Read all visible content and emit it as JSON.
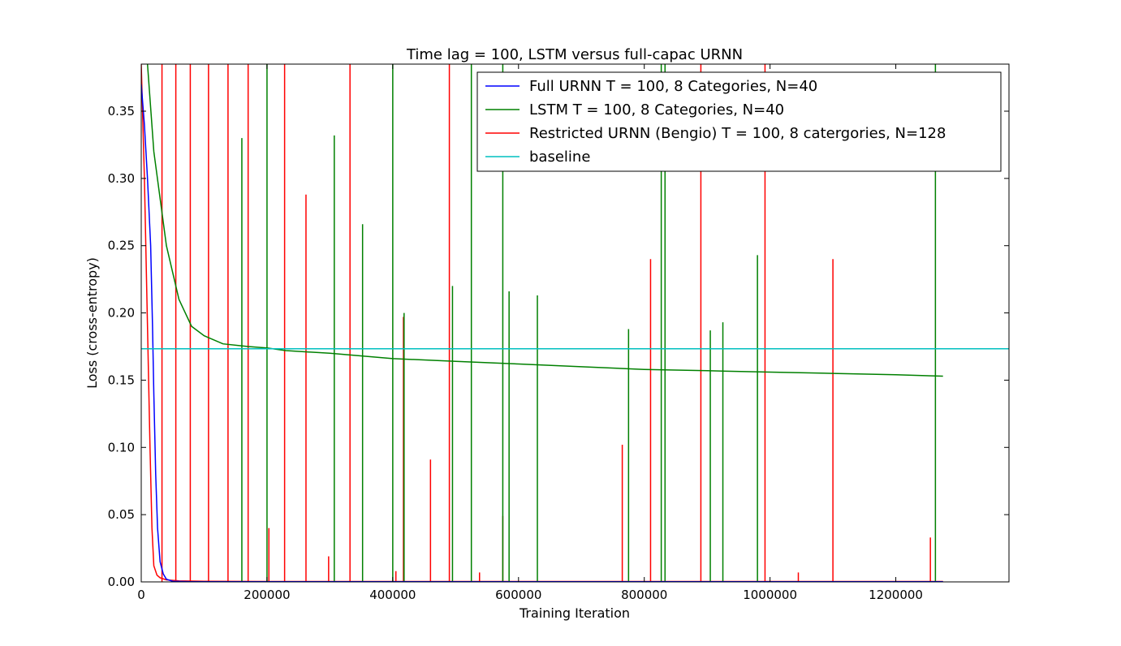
{
  "chart_data": {
    "type": "line",
    "title": "Time lag = 100, LSTM versus full-capac URNN",
    "xlabel": "Training Iteration",
    "ylabel": "Loss (cross-entropy)",
    "xlim": [
      0,
      1380000
    ],
    "ylim": [
      0,
      0.385
    ],
    "xticks": [
      0,
      200000,
      400000,
      600000,
      800000,
      1000000,
      1200000
    ],
    "xtick_labels": [
      "0",
      "200000",
      "400000",
      "600000",
      "800000",
      "1000000",
      "1200000"
    ],
    "yticks": [
      0,
      0.05,
      0.1,
      0.15,
      0.2,
      0.25,
      0.3,
      0.35
    ],
    "ytick_labels": [
      "0.00",
      "0.05",
      "0.10",
      "0.15",
      "0.20",
      "0.25",
      "0.30",
      "0.35"
    ],
    "grid": false,
    "legend_position": "top-right",
    "series": [
      {
        "name": "Full URNN T = 100, 8 Categories, N=40",
        "color": "#0000ff",
        "x": [
          0,
          5000,
          10000,
          15000,
          18000,
          20000,
          23000,
          26000,
          30000,
          35000,
          40000,
          50000,
          80000,
          200000,
          400000,
          800000,
          1275000
        ],
        "y": [
          0.37,
          0.34,
          0.3,
          0.25,
          0.19,
          0.14,
          0.08,
          0.04,
          0.015,
          0.006,
          0.002,
          0.0005,
          0.0002,
          0.0001,
          0.0001,
          0.0001,
          0.0001
        ]
      },
      {
        "name": "LSTM T = 100, 8 Categories, N=40",
        "color": "#008000",
        "x": [
          10000,
          20000,
          40000,
          60000,
          80000,
          100000,
          130000,
          170000,
          200000,
          230000,
          300000,
          400000,
          500000,
          600000,
          700000,
          800000,
          900000,
          1000000,
          1100000,
          1200000,
          1275000
        ],
        "y": [
          0.385,
          0.32,
          0.25,
          0.21,
          0.19,
          0.183,
          0.177,
          0.175,
          0.174,
          0.172,
          0.17,
          0.166,
          0.164,
          0.162,
          0.16,
          0.158,
          0.157,
          0.156,
          0.155,
          0.154,
          0.153
        ],
        "spikes": [
          {
            "x": 160000,
            "y": 0.33
          },
          {
            "x": 200000,
            "y": 0.385
          },
          {
            "x": 307000,
            "y": 0.332
          },
          {
            "x": 352000,
            "y": 0.266
          },
          {
            "x": 400000,
            "y": 0.385
          },
          {
            "x": 418000,
            "y": 0.2
          },
          {
            "x": 495000,
            "y": 0.22
          },
          {
            "x": 525000,
            "y": 0.385
          },
          {
            "x": 575000,
            "y": 0.385
          },
          {
            "x": 585000,
            "y": 0.216
          },
          {
            "x": 630000,
            "y": 0.213
          },
          {
            "x": 775000,
            "y": 0.188
          },
          {
            "x": 827000,
            "y": 0.385
          },
          {
            "x": 833000,
            "y": 0.385
          },
          {
            "x": 905000,
            "y": 0.187
          },
          {
            "x": 925000,
            "y": 0.193
          },
          {
            "x": 980000,
            "y": 0.243
          },
          {
            "x": 1263000,
            "y": 0.385
          }
        ]
      },
      {
        "name": "Restricted URNN (Bengio) T = 100, 8 catergories, N=128",
        "color": "#ff0000",
        "x": [
          0,
          5000,
          10000,
          14000,
          17000,
          20000,
          25000,
          30000,
          40000,
          60000,
          100000,
          200000,
          400000,
          800000,
          1275000
        ],
        "y": [
          0.385,
          0.3,
          0.19,
          0.1,
          0.04,
          0.012,
          0.005,
          0.003,
          0.0015,
          0.0008,
          0.0005,
          0.0003,
          0.0003,
          0.0003,
          0.0003
        ],
        "spikes": [
          {
            "x": 33000,
            "y": 0.385
          },
          {
            "x": 55000,
            "y": 0.385
          },
          {
            "x": 78000,
            "y": 0.385
          },
          {
            "x": 107000,
            "y": 0.385
          },
          {
            "x": 138000,
            "y": 0.385
          },
          {
            "x": 170000,
            "y": 0.385
          },
          {
            "x": 203000,
            "y": 0.04
          },
          {
            "x": 228000,
            "y": 0.385
          },
          {
            "x": 262000,
            "y": 0.288
          },
          {
            "x": 298000,
            "y": 0.019
          },
          {
            "x": 332000,
            "y": 0.385
          },
          {
            "x": 405000,
            "y": 0.008
          },
          {
            "x": 417000,
            "y": 0.197
          },
          {
            "x": 460000,
            "y": 0.091
          },
          {
            "x": 490000,
            "y": 0.385
          },
          {
            "x": 538000,
            "y": 0.007
          },
          {
            "x": 575000,
            "y": 0.049
          },
          {
            "x": 765000,
            "y": 0.102
          },
          {
            "x": 810000,
            "y": 0.24
          },
          {
            "x": 890000,
            "y": 0.385
          },
          {
            "x": 992000,
            "y": 0.385
          },
          {
            "x": 1045000,
            "y": 0.007
          },
          {
            "x": 1100000,
            "y": 0.24
          },
          {
            "x": 1255000,
            "y": 0.033
          }
        ]
      },
      {
        "name": "baseline",
        "color": "#00bfbf",
        "x": [
          0,
          1380000
        ],
        "y": [
          0.1733,
          0.1733
        ]
      }
    ]
  }
}
